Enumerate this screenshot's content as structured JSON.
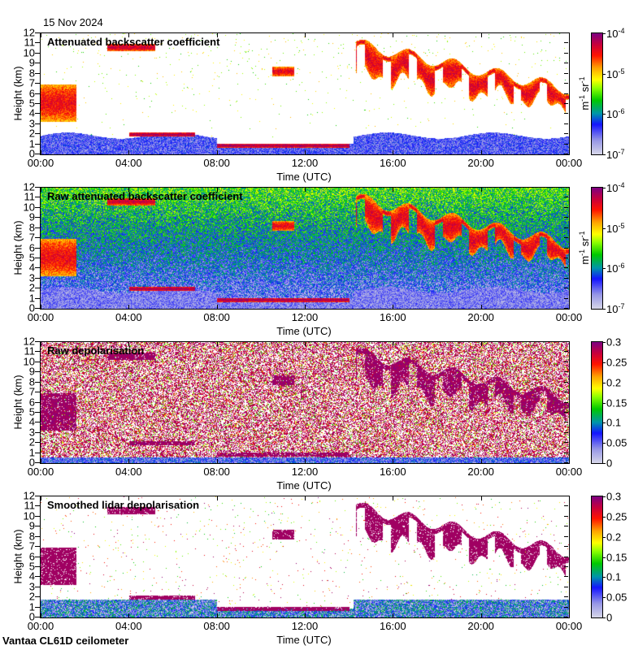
{
  "header": {
    "date": "15 Nov 2024"
  },
  "footer": {
    "site": "Vantaa CL61D ceilometer"
  },
  "chart_data": [
    {
      "type": "heatmap",
      "title": "Attenuated backscatter coefficient",
      "xlabel": "Time (UTC)",
      "ylabel": "Height (km)",
      "xticks": [
        "00:00",
        "04:00",
        "08:00",
        "12:00",
        "16:00",
        "20:00",
        "00:00"
      ],
      "yticks": [
        "0",
        "1",
        "2",
        "3",
        "4",
        "5",
        "6",
        "7",
        "8",
        "9",
        "10",
        "11",
        "12"
      ],
      "ylim": [
        0,
        12
      ],
      "xlim_hours": [
        0,
        24
      ],
      "colorbar": {
        "scale": "log",
        "range": [
          1e-07,
          0.0001
        ],
        "ticks": [
          {
            "base": "10",
            "exp": "-4"
          },
          {
            "base": "10",
            "exp": "-5"
          },
          {
            "base": "10",
            "exp": "-6"
          },
          {
            "base": "10",
            "exp": "-7"
          }
        ],
        "units": {
          "a": "m",
          "ae": "-1",
          "b": " sr",
          "be": "-1"
        }
      },
      "background": "masked",
      "features": [
        {
          "t": [
            0,
            1.6
          ],
          "h": [
            3.3,
            7.0
          ],
          "level": 0.7
        },
        {
          "t": [
            3.0,
            5.2
          ],
          "h": [
            10.3,
            11.0
          ],
          "level": 0.75
        },
        {
          "t": [
            10.5,
            11.5
          ],
          "h": [
            7.8,
            8.7
          ],
          "level": 0.72
        },
        {
          "t": [
            14.3,
            24
          ],
          "h_top": [
            11,
            6.5
          ],
          "h_bottom": [
            8,
            4.8
          ],
          "level": 0.72
        },
        {
          "t": [
            4.0,
            7.0
          ],
          "h": [
            1.8,
            2.2
          ],
          "level": 0.8
        },
        {
          "t": [
            8.0,
            14.0
          ],
          "h": [
            0.7,
            1.1
          ],
          "level": 0.8
        }
      ]
    },
    {
      "type": "heatmap",
      "title": "Raw attenuated backscatter coefficient",
      "xlabel": "Time (UTC)",
      "ylabel": "Height (km)",
      "xticks": [
        "00:00",
        "04:00",
        "08:00",
        "12:00",
        "16:00",
        "20:00",
        "00:00"
      ],
      "yticks": [
        "0",
        "1",
        "2",
        "3",
        "4",
        "5",
        "6",
        "7",
        "8",
        "9",
        "10",
        "11",
        "12"
      ],
      "ylim": [
        0,
        12
      ],
      "colorbar": {
        "scale": "log",
        "range": [
          1e-07,
          0.0001
        ],
        "ticks": [
          {
            "base": "10",
            "exp": "-4"
          },
          {
            "base": "10",
            "exp": "-5"
          },
          {
            "base": "10",
            "exp": "-6"
          },
          {
            "base": "10",
            "exp": "-7"
          }
        ],
        "units": {
          "a": "m",
          "ae": "-1",
          "b": " sr",
          "be": "-1"
        }
      },
      "background": "noise"
    },
    {
      "type": "heatmap",
      "title": "Raw depolarisation",
      "xlabel": "Time (UTC)",
      "ylabel": "Height (km)",
      "xticks": [
        "00:00",
        "04:00",
        "08:00",
        "12:00",
        "16:00",
        "20:00",
        "00:00"
      ],
      "yticks": [
        "0",
        "1",
        "2",
        "3",
        "4",
        "5",
        "6",
        "7",
        "8",
        "9",
        "10",
        "11",
        "12"
      ],
      "ylim": [
        0,
        12
      ],
      "colorbar": {
        "scale": "linear",
        "range": [
          0,
          0.3
        ],
        "ticks": [
          "0.3",
          "0.25",
          "0.2",
          "0.15",
          "0.1",
          "0.05",
          "0"
        ]
      },
      "background": "noise"
    },
    {
      "type": "heatmap",
      "title": "Smoothed lidar depolarisation",
      "xlabel": "Time (UTC)",
      "ylabel": "Height (km)",
      "xticks": [
        "00:00",
        "04:00",
        "08:00",
        "12:00",
        "16:00",
        "20:00",
        "00:00"
      ],
      "yticks": [
        "0",
        "1",
        "2",
        "3",
        "4",
        "5",
        "6",
        "7",
        "8",
        "9",
        "10",
        "11",
        "12"
      ],
      "ylim": [
        0,
        12
      ],
      "colorbar": {
        "scale": "linear",
        "range": [
          0,
          0.3
        ],
        "ticks": [
          "0.3",
          "0.25",
          "0.2",
          "0.15",
          "0.1",
          "0.05",
          "0"
        ]
      },
      "background": "masked"
    }
  ]
}
